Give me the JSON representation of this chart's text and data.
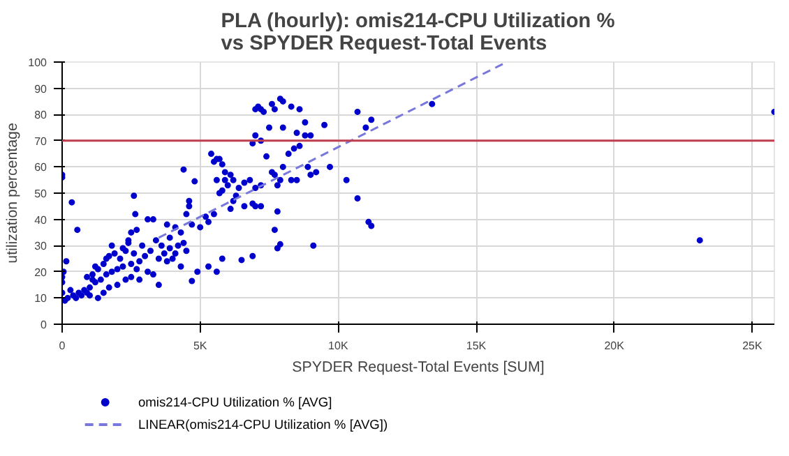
{
  "chart_data": {
    "type": "scatter",
    "title": "PLA (hourly): omis214-CPU Utilization %\nvs SPYDER Request-Total Events",
    "xlabel": "SPYDER Request-Total Events [SUM]",
    "ylabel": "utilization percentage",
    "xlim": [
      0,
      25800
    ],
    "ylim": [
      0,
      100
    ],
    "xticks": [
      0,
      {
        "value": 5000,
        "label": "5K"
      },
      {
        "value": 10000,
        "label": "10K"
      },
      {
        "value": 15000,
        "label": "15K"
      },
      {
        "value": 20000,
        "label": "20K"
      },
      {
        "value": 25000,
        "label": "25K"
      }
    ],
    "yticks": [
      0,
      10,
      20,
      30,
      40,
      50,
      60,
      70,
      80,
      90,
      100
    ],
    "grid": true,
    "legend": "bottom left",
    "marker": "circle",
    "ref_lines": [
      {
        "axis": "y",
        "value": 70,
        "color": "#c04050"
      }
    ],
    "series": [
      {
        "name": "omis214-CPU Utilization %  [AVG]",
        "color": "#0000cc",
        "type": "scatter",
        "x": [
          0,
          0,
          350,
          550,
          2600,
          2650,
          4400,
          4800,
          23100,
          25800,
          13400,
          10700,
          10700,
          11100,
          11200,
          11000,
          11200,
          10300,
          9500,
          9700,
          9100,
          6900,
          6500,
          5300,
          5600,
          5800,
          4900,
          4700,
          3500,
          7700,
          7800,
          7900,
          7800,
          7000,
          7100,
          7200,
          7300,
          7600,
          7700,
          7900,
          8000,
          8300,
          8600,
          7500,
          8000,
          8800,
          8500,
          8800,
          9000,
          7000,
          7200,
          6900,
          7400,
          8200,
          8600,
          8400,
          8900,
          9000,
          9200,
          8500,
          8300,
          8000,
          7600,
          7700,
          7800,
          7900,
          7200,
          7000,
          6800,
          6600,
          6400,
          6300,
          6200,
          6100,
          6600,
          7000,
          7200,
          6900,
          5400,
          5600,
          5700,
          5500,
          5800,
          5900,
          6100,
          5900,
          5800,
          5700,
          5600,
          6200,
          6000,
          5500,
          5200,
          5300,
          5000,
          4700,
          4500,
          4600,
          4600,
          4300,
          4100,
          3800,
          3900,
          4200,
          4400,
          4000,
          4300,
          3300,
          3100,
          2700,
          2500,
          2400,
          3400,
          3600,
          3200,
          3000,
          2800,
          2500,
          2200,
          2000,
          1800,
          1600,
          1400,
          1200,
          1000,
          800,
          600,
          400,
          200,
          100,
          0,
          0,
          0,
          50,
          150,
          300,
          500,
          700,
          900,
          1100,
          1300,
          1500,
          1700,
          1900,
          2100,
          2300,
          2600,
          2900,
          3100,
          3300,
          2800,
          2500,
          2000,
          1500,
          1300,
          1000,
          1800,
          2200,
          2400,
          1600,
          1200,
          900,
          1100,
          1700,
          2300,
          2700,
          3500,
          3700,
          3900,
          3800,
          4500,
          4100
        ],
        "values": [
          56,
          57,
          46.5,
          36,
          49,
          42,
          59,
          54.5,
          32,
          81,
          84,
          81,
          48,
          39,
          37.5,
          75,
          78,
          55,
          76,
          60,
          30,
          26,
          24.5,
          22,
          20,
          25,
          20,
          16.5,
          15,
          36,
          29,
          30.5,
          43,
          82,
          83,
          82,
          81,
          84,
          82,
          86,
          85,
          83,
          82,
          75,
          75,
          72,
          73,
          77,
          72,
          72,
          70,
          69,
          64,
          65,
          68,
          67,
          60,
          57,
          58,
          55,
          55,
          60,
          58,
          57,
          53,
          55,
          53,
          52,
          55,
          54,
          52,
          49,
          47,
          44,
          45,
          45,
          45,
          46,
          65,
          63,
          63,
          62,
          61,
          58,
          57,
          55,
          51,
          50,
          55,
          55,
          53,
          42,
          41,
          39,
          37,
          38,
          42,
          47,
          45,
          35,
          37,
          38,
          33,
          30,
          31,
          25,
          22,
          40,
          40,
          36,
          35,
          32,
          32,
          30,
          28,
          26,
          24,
          23,
          22,
          21,
          20,
          19,
          17,
          16,
          14,
          13,
          12,
          11,
          10,
          9,
          12,
          16,
          18,
          20,
          24,
          13,
          10,
          11,
          12,
          17,
          21,
          23,
          26,
          27,
          25,
          28,
          27,
          30,
          20,
          19,
          17,
          18,
          15,
          12,
          10,
          11,
          30,
          29,
          31,
          25,
          22,
          18,
          19,
          14,
          17,
          21,
          25,
          27,
          29,
          24,
          28,
          27
        ]
      },
      {
        "name": "LINEAR(omis214-CPU Utilization %  [AVG])",
        "color": "#7777dd",
        "type": "line",
        "line_style": "dashed",
        "marker": "none",
        "x": [
          3500,
          16100
        ],
        "values": [
          33,
          100
        ]
      }
    ]
  }
}
